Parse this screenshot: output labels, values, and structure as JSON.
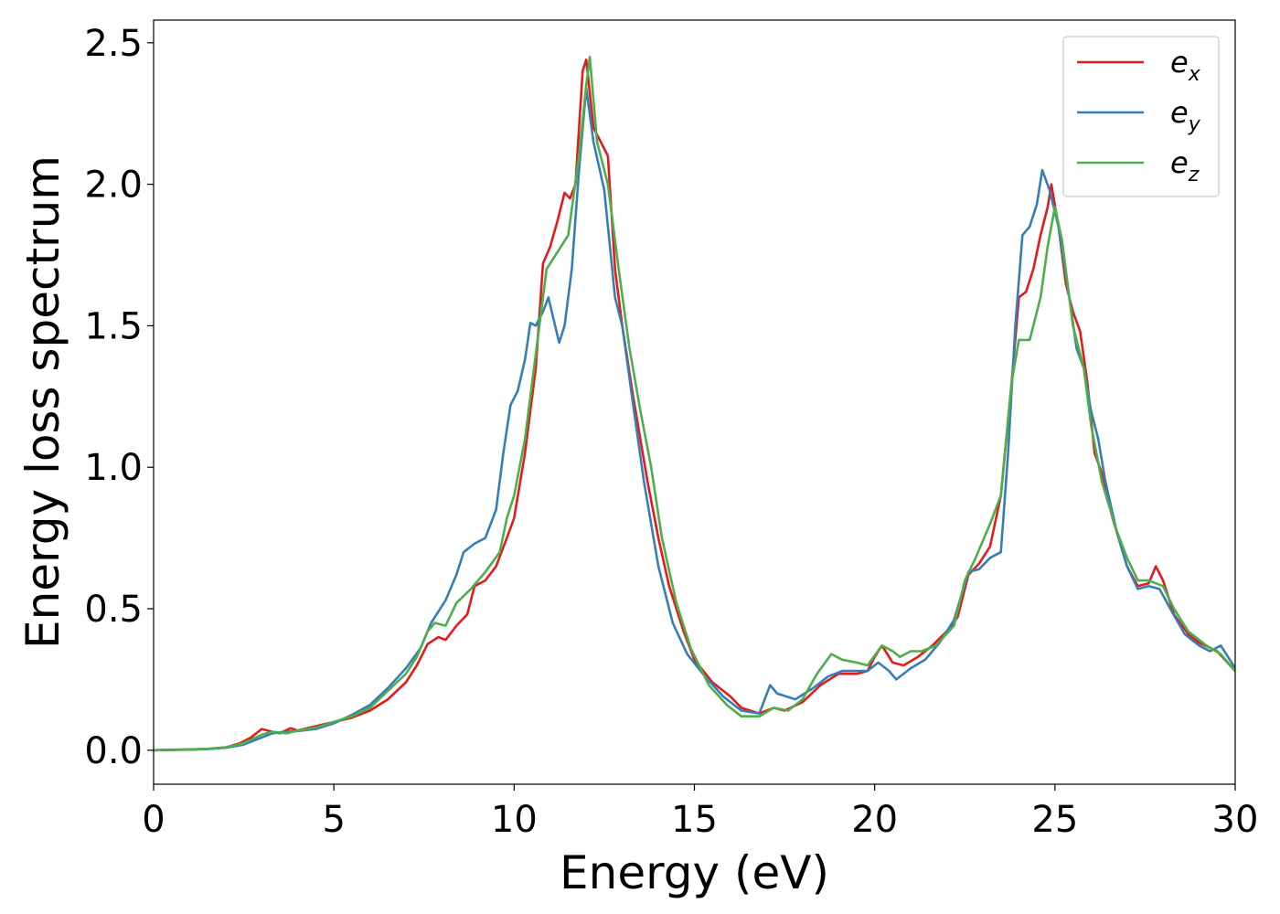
{
  "chart_data": {
    "type": "line",
    "title": "",
    "xlabel": "Energy (eV)",
    "ylabel": "Energy loss spectrum",
    "xlim": [
      0,
      30
    ],
    "ylim": [
      -0.12,
      2.58
    ],
    "xticks": [
      0,
      5,
      10,
      15,
      20,
      25,
      30
    ],
    "xtick_labels": [
      "0",
      "5",
      "10",
      "15",
      "20",
      "25",
      "30"
    ],
    "yticks": [
      0.0,
      0.5,
      1.0,
      1.5,
      2.0,
      2.5
    ],
    "ytick_labels": [
      "0.0",
      "0.5",
      "1.0",
      "1.5",
      "2.0",
      "2.5"
    ],
    "grid": false,
    "legend_position": "top-right",
    "series": [
      {
        "name": "e",
        "subscript": "x",
        "color": "#e41a1c",
        "points": [
          [
            0,
            0
          ],
          [
            1,
            0.003
          ],
          [
            1.5,
            0.005
          ],
          [
            2,
            0.01
          ],
          [
            2.4,
            0.025
          ],
          [
            2.7,
            0.045
          ],
          [
            3,
            0.075
          ],
          [
            3.3,
            0.065
          ],
          [
            3.5,
            0.06
          ],
          [
            3.8,
            0.078
          ],
          [
            4,
            0.07
          ],
          [
            4.5,
            0.085
          ],
          [
            5,
            0.1
          ],
          [
            5.5,
            0.115
          ],
          [
            6,
            0.14
          ],
          [
            6.5,
            0.18
          ],
          [
            7,
            0.24
          ],
          [
            7.3,
            0.3
          ],
          [
            7.6,
            0.375
          ],
          [
            7.9,
            0.4
          ],
          [
            8.1,
            0.39
          ],
          [
            8.4,
            0.44
          ],
          [
            8.7,
            0.48
          ],
          [
            8.9,
            0.58
          ],
          [
            9.2,
            0.6
          ],
          [
            9.5,
            0.65
          ],
          [
            9.8,
            0.75
          ],
          [
            10,
            0.82
          ],
          [
            10.3,
            1.05
          ],
          [
            10.6,
            1.35
          ],
          [
            10.8,
            1.72
          ],
          [
            11,
            1.78
          ],
          [
            11.2,
            1.87
          ],
          [
            11.4,
            1.97
          ],
          [
            11.55,
            1.95
          ],
          [
            11.7,
            2.0
          ],
          [
            11.9,
            2.4
          ],
          [
            12,
            2.44
          ],
          [
            12.2,
            2.2
          ],
          [
            12.4,
            2.15
          ],
          [
            12.6,
            2.1
          ],
          [
            12.8,
            1.7
          ],
          [
            13,
            1.5
          ],
          [
            13.3,
            1.25
          ],
          [
            13.7,
            0.95
          ],
          [
            14,
            0.75
          ],
          [
            14.3,
            0.58
          ],
          [
            14.7,
            0.42
          ],
          [
            15,
            0.32
          ],
          [
            15.5,
            0.24
          ],
          [
            16,
            0.19
          ],
          [
            16.3,
            0.15
          ],
          [
            16.8,
            0.13
          ],
          [
            17.2,
            0.15
          ],
          [
            17.5,
            0.14
          ],
          [
            18,
            0.17
          ],
          [
            18.5,
            0.23
          ],
          [
            19,
            0.27
          ],
          [
            19.5,
            0.27
          ],
          [
            19.8,
            0.28
          ],
          [
            20,
            0.33
          ],
          [
            20.2,
            0.37
          ],
          [
            20.5,
            0.31
          ],
          [
            20.8,
            0.3
          ],
          [
            21.2,
            0.33
          ],
          [
            21.6,
            0.37
          ],
          [
            22,
            0.42
          ],
          [
            22.3,
            0.47
          ],
          [
            22.6,
            0.62
          ],
          [
            22.9,
            0.66
          ],
          [
            23.2,
            0.72
          ],
          [
            23.5,
            0.9
          ],
          [
            23.8,
            1.3
          ],
          [
            24,
            1.6
          ],
          [
            24.2,
            1.62
          ],
          [
            24.4,
            1.7
          ],
          [
            24.6,
            1.82
          ],
          [
            24.8,
            1.92
          ],
          [
            24.9,
            2.0
          ],
          [
            25.1,
            1.85
          ],
          [
            25.3,
            1.65
          ],
          [
            25.5,
            1.55
          ],
          [
            25.7,
            1.48
          ],
          [
            25.9,
            1.3
          ],
          [
            26.1,
            1.05
          ],
          [
            26.3,
            0.98
          ],
          [
            26.6,
            0.82
          ],
          [
            27,
            0.65
          ],
          [
            27.3,
            0.58
          ],
          [
            27.6,
            0.59
          ],
          [
            27.8,
            0.65
          ],
          [
            28,
            0.6
          ],
          [
            28.3,
            0.48
          ],
          [
            28.7,
            0.41
          ],
          [
            29,
            0.38
          ],
          [
            29.5,
            0.35
          ],
          [
            30,
            0.28
          ]
        ]
      },
      {
        "name": "e",
        "subscript": "y",
        "color": "#377eb8",
        "points": [
          [
            0,
            0
          ],
          [
            1,
            0.002
          ],
          [
            1.5,
            0.004
          ],
          [
            2,
            0.009
          ],
          [
            2.5,
            0.02
          ],
          [
            3,
            0.045
          ],
          [
            3.3,
            0.06
          ],
          [
            3.6,
            0.065
          ],
          [
            4,
            0.068
          ],
          [
            4.5,
            0.075
          ],
          [
            5,
            0.095
          ],
          [
            5.5,
            0.125
          ],
          [
            6,
            0.16
          ],
          [
            6.5,
            0.22
          ],
          [
            7,
            0.29
          ],
          [
            7.4,
            0.36
          ],
          [
            7.7,
            0.45
          ],
          [
            8.1,
            0.53
          ],
          [
            8.4,
            0.62
          ],
          [
            8.6,
            0.7
          ],
          [
            8.9,
            0.73
          ],
          [
            9.2,
            0.75
          ],
          [
            9.5,
            0.85
          ],
          [
            9.7,
            1.05
          ],
          [
            9.9,
            1.22
          ],
          [
            10.1,
            1.27
          ],
          [
            10.3,
            1.38
          ],
          [
            10.45,
            1.51
          ],
          [
            10.6,
            1.5
          ],
          [
            10.8,
            1.55
          ],
          [
            10.95,
            1.6
          ],
          [
            11.1,
            1.52
          ],
          [
            11.25,
            1.44
          ],
          [
            11.4,
            1.5
          ],
          [
            11.6,
            1.7
          ],
          [
            11.8,
            2.05
          ],
          [
            12,
            2.34
          ],
          [
            12.2,
            2.15
          ],
          [
            12.5,
            1.98
          ],
          [
            12.8,
            1.6
          ],
          [
            13,
            1.5
          ],
          [
            13.3,
            1.22
          ],
          [
            13.6,
            0.95
          ],
          [
            14,
            0.65
          ],
          [
            14.4,
            0.45
          ],
          [
            14.8,
            0.34
          ],
          [
            15.3,
            0.26
          ],
          [
            15.8,
            0.19
          ],
          [
            16.3,
            0.14
          ],
          [
            16.8,
            0.13
          ],
          [
            17.1,
            0.23
          ],
          [
            17.3,
            0.2
          ],
          [
            17.8,
            0.18
          ],
          [
            18.3,
            0.22
          ],
          [
            18.7,
            0.26
          ],
          [
            19.1,
            0.28
          ],
          [
            19.5,
            0.28
          ],
          [
            19.8,
            0.28
          ],
          [
            20.1,
            0.31
          ],
          [
            20.4,
            0.28
          ],
          [
            20.6,
            0.25
          ],
          [
            21,
            0.29
          ],
          [
            21.4,
            0.32
          ],
          [
            21.8,
            0.38
          ],
          [
            22.2,
            0.46
          ],
          [
            22.6,
            0.63
          ],
          [
            22.9,
            0.64
          ],
          [
            23.2,
            0.68
          ],
          [
            23.5,
            0.7
          ],
          [
            23.7,
            1.05
          ],
          [
            23.9,
            1.5
          ],
          [
            24.1,
            1.82
          ],
          [
            24.3,
            1.85
          ],
          [
            24.5,
            1.93
          ],
          [
            24.65,
            2.05
          ],
          [
            24.85,
            1.98
          ],
          [
            25.1,
            1.85
          ],
          [
            25.4,
            1.6
          ],
          [
            25.6,
            1.42
          ],
          [
            25.8,
            1.35
          ],
          [
            26,
            1.2
          ],
          [
            26.2,
            1.1
          ],
          [
            26.4,
            0.95
          ],
          [
            26.7,
            0.78
          ],
          [
            27,
            0.65
          ],
          [
            27.3,
            0.57
          ],
          [
            27.6,
            0.58
          ],
          [
            27.9,
            0.57
          ],
          [
            28.2,
            0.5
          ],
          [
            28.6,
            0.41
          ],
          [
            29,
            0.37
          ],
          [
            29.3,
            0.35
          ],
          [
            29.6,
            0.37
          ],
          [
            30,
            0.29
          ]
        ]
      },
      {
        "name": "e",
        "subscript": "z",
        "color": "#4daf4a",
        "points": [
          [
            0,
            0
          ],
          [
            1,
            0.003
          ],
          [
            1.5,
            0.005
          ],
          [
            2,
            0.01
          ],
          [
            2.5,
            0.025
          ],
          [
            3,
            0.055
          ],
          [
            3.3,
            0.065
          ],
          [
            3.7,
            0.06
          ],
          [
            4,
            0.07
          ],
          [
            4.5,
            0.08
          ],
          [
            5,
            0.1
          ],
          [
            5.5,
            0.12
          ],
          [
            6,
            0.15
          ],
          [
            6.5,
            0.21
          ],
          [
            7,
            0.27
          ],
          [
            7.3,
            0.33
          ],
          [
            7.6,
            0.42
          ],
          [
            7.8,
            0.45
          ],
          [
            8.1,
            0.44
          ],
          [
            8.4,
            0.52
          ],
          [
            8.8,
            0.57
          ],
          [
            9.2,
            0.63
          ],
          [
            9.6,
            0.7
          ],
          [
            9.8,
            0.82
          ],
          [
            10,
            0.9
          ],
          [
            10.3,
            1.1
          ],
          [
            10.6,
            1.4
          ],
          [
            10.9,
            1.7
          ],
          [
            11.1,
            1.74
          ],
          [
            11.3,
            1.78
          ],
          [
            11.5,
            1.82
          ],
          [
            11.8,
            2.1
          ],
          [
            12,
            2.35
          ],
          [
            12.1,
            2.45
          ],
          [
            12.3,
            2.15
          ],
          [
            12.6,
            2.0
          ],
          [
            12.9,
            1.7
          ],
          [
            13.2,
            1.42
          ],
          [
            13.5,
            1.2
          ],
          [
            13.8,
            1.0
          ],
          [
            14.1,
            0.75
          ],
          [
            14.5,
            0.52
          ],
          [
            14.9,
            0.36
          ],
          [
            15.4,
            0.23
          ],
          [
            15.9,
            0.16
          ],
          [
            16.3,
            0.12
          ],
          [
            16.8,
            0.12
          ],
          [
            17.2,
            0.15
          ],
          [
            17.6,
            0.14
          ],
          [
            18,
            0.18
          ],
          [
            18.4,
            0.27
          ],
          [
            18.8,
            0.34
          ],
          [
            19.1,
            0.32
          ],
          [
            19.5,
            0.31
          ],
          [
            19.8,
            0.3
          ],
          [
            20.2,
            0.37
          ],
          [
            20.5,
            0.35
          ],
          [
            20.7,
            0.33
          ],
          [
            21,
            0.35
          ],
          [
            21.3,
            0.35
          ],
          [
            21.7,
            0.37
          ],
          [
            22.2,
            0.44
          ],
          [
            22.5,
            0.6
          ],
          [
            22.8,
            0.68
          ],
          [
            23.2,
            0.8
          ],
          [
            23.5,
            0.9
          ],
          [
            23.8,
            1.3
          ],
          [
            24,
            1.45
          ],
          [
            24.3,
            1.45
          ],
          [
            24.6,
            1.6
          ],
          [
            24.8,
            1.78
          ],
          [
            25,
            1.92
          ],
          [
            25.2,
            1.8
          ],
          [
            25.5,
            1.5
          ],
          [
            25.8,
            1.35
          ],
          [
            26,
            1.15
          ],
          [
            26.3,
            0.95
          ],
          [
            26.7,
            0.78
          ],
          [
            27,
            0.68
          ],
          [
            27.3,
            0.6
          ],
          [
            27.6,
            0.6
          ],
          [
            28,
            0.58
          ],
          [
            28.3,
            0.5
          ],
          [
            28.7,
            0.42
          ],
          [
            29.2,
            0.37
          ],
          [
            29.6,
            0.34
          ],
          [
            30,
            0.28
          ]
        ]
      }
    ]
  }
}
